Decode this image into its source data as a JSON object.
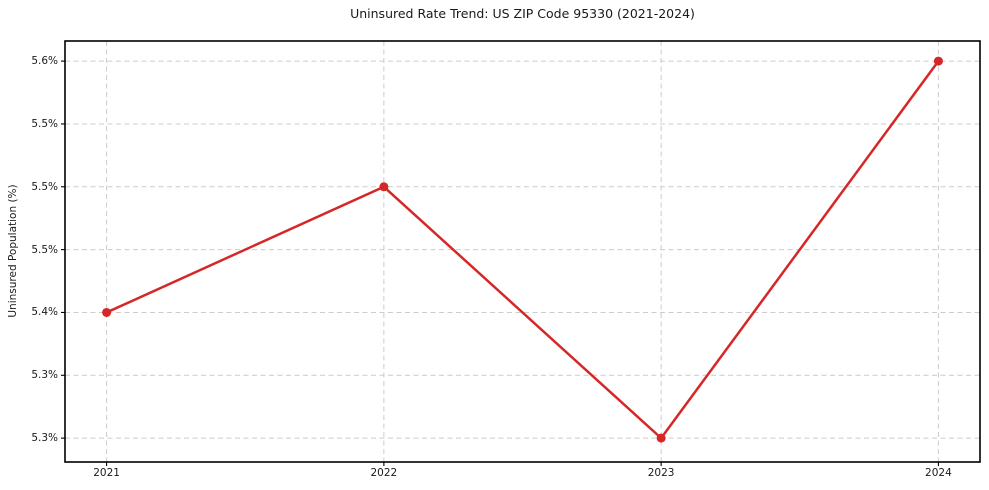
{
  "chart_data": {
    "type": "line",
    "title": "Uninsured Rate Trend: US ZIP Code 95330 (2021-2024)",
    "xlabel": "",
    "ylabel": "Uninsured Population (%)",
    "x": [
      2021,
      2022,
      2023,
      2024
    ],
    "values": [
      5.4,
      5.5,
      5.3,
      5.6
    ],
    "x_tick_labels": [
      "2021",
      "2022",
      "2023",
      "2024"
    ],
    "y_ticks": [
      5.3,
      5.35,
      5.4,
      5.45,
      5.5,
      5.55,
      5.6
    ],
    "y_tick_labels": [
      "5.3%",
      "5.3%",
      "5.4%",
      "5.5%",
      "5.5%",
      "5.5%",
      "5.6%"
    ],
    "xlim": [
      2020.85,
      2024.15
    ],
    "ylim": [
      5.281,
      5.616
    ],
    "grid": true,
    "grid_style": "dashed",
    "legend_position": "none",
    "line_color": "#d62728",
    "marker": "circle",
    "grid_color": "#cccccc",
    "spine_color": "#000000",
    "background_color": "#ffffff"
  }
}
